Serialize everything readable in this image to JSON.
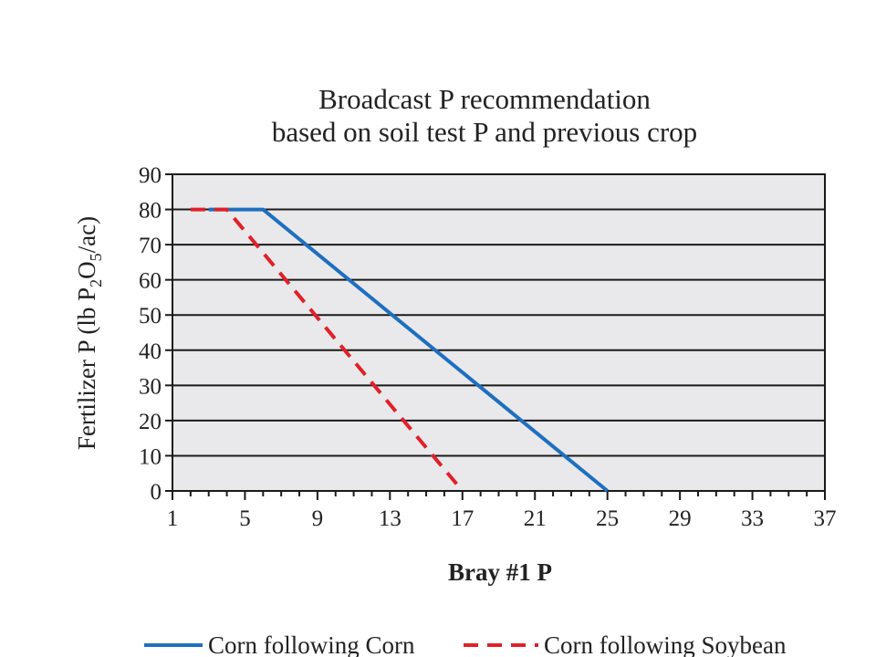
{
  "chart_data": {
    "type": "line",
    "title": "Broadcast P recommendation",
    "subtitle": "based on soil test P and previous crop",
    "xlabel": "Bray #1 P",
    "ylabel_parts": {
      "a": "Fertilizer P (lb P",
      "sub1": "2",
      "b": "O",
      "sub2": "5",
      "c": "/ac)"
    },
    "xlim": [
      1,
      37
    ],
    "ylim": [
      0,
      90
    ],
    "x_ticks": [
      "1",
      "5",
      "9",
      "13",
      "17",
      "21",
      "25",
      "29",
      "33",
      "37"
    ],
    "y_ticks": [
      "0",
      "10",
      "20",
      "30",
      "40",
      "50",
      "60",
      "70",
      "80",
      "90"
    ],
    "grid": true,
    "legend_position": "bottom",
    "series": [
      {
        "name": "Corn following Corn",
        "color": "#1f6fbf",
        "style": "solid",
        "x": [
          3,
          6,
          25
        ],
        "y": [
          80,
          80,
          0
        ]
      },
      {
        "name": "Corn following Soybean",
        "color": "#e0202a",
        "style": "dashed",
        "x": [
          2,
          4,
          17
        ],
        "y": [
          80,
          80,
          0
        ]
      }
    ]
  }
}
